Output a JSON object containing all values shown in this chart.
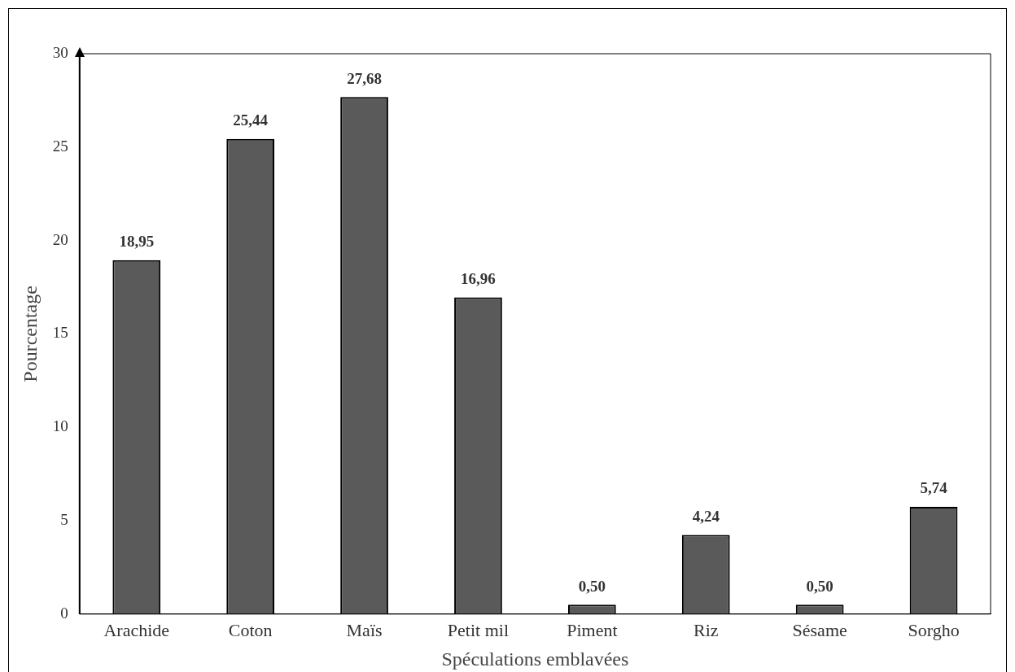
{
  "chart_data": {
    "type": "bar",
    "xlabel": "Spéculations emblavées",
    "ylabel": "Pourcentage",
    "categories": [
      "Arachide",
      "Coton",
      "Maïs",
      "Petit mil",
      "Piment",
      "Riz",
      "Sésame",
      "Sorgho"
    ],
    "values": [
      18.95,
      25.44,
      27.68,
      16.96,
      0.5,
      4.24,
      0.5,
      5.74
    ],
    "value_labels": [
      "18,95",
      "25,44",
      "27,68",
      "16,96",
      "0,50",
      "4,24",
      "0,50",
      "5,74"
    ],
    "color": "#5a5a5a",
    "ylim": [
      0,
      30
    ],
    "yticks": [
      0,
      5,
      10,
      15,
      20,
      25,
      30
    ],
    "grid": false,
    "legend": false
  }
}
